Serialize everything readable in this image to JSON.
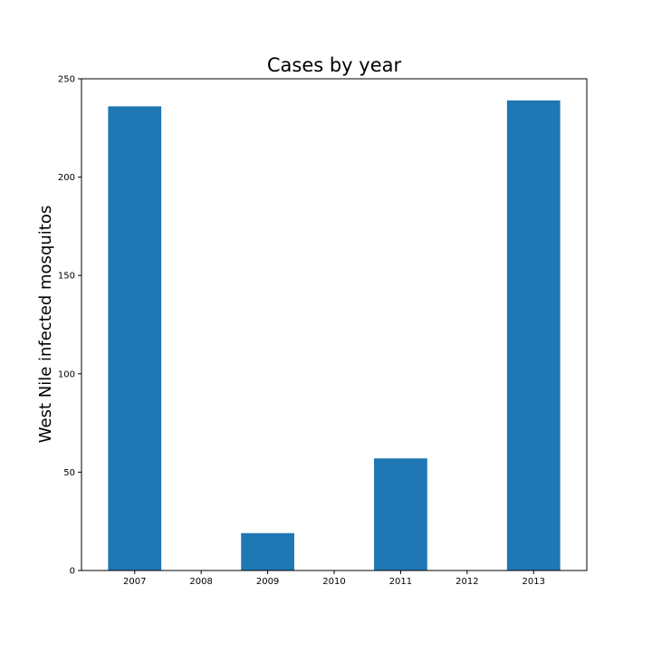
{
  "chart_data": {
    "type": "bar",
    "title": "Cases by year",
    "xlabel": "",
    "ylabel": "West Nile infected mosquitos",
    "categories": [
      "2007",
      "2008",
      "2009",
      "2010",
      "2011",
      "2012",
      "2013"
    ],
    "values": [
      236,
      0,
      19,
      0,
      57,
      0,
      239
    ],
    "ylim": [
      0,
      250
    ],
    "yticks": [
      0,
      50,
      100,
      150,
      200,
      250
    ],
    "grid": false,
    "bar_color": "#1f77b4"
  }
}
